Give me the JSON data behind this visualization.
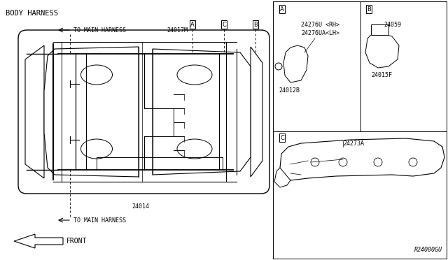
{
  "bg_color": "#ffffff",
  "line_color": "#000000",
  "part_number_diagram": "R24000GU",
  "labels": {
    "title": "BODY HARNESS",
    "to_main_top": "TO MAIN HARNESS",
    "to_main_bottom": "TO MAIN HARNESS",
    "front": "FRONT",
    "part_24017M": "24017M",
    "part_24014": "24014",
    "part_24276U": "24276U <RH>",
    "part_24276UA": "24276UA<LH>",
    "part_24012B": "24012B",
    "part_24059": "24059",
    "part_24015F": "24015F",
    "part_24273A": "24273A"
  },
  "font_size_small": 6.0,
  "font_size_medium": 7.0,
  "font_size_title": 7.5
}
